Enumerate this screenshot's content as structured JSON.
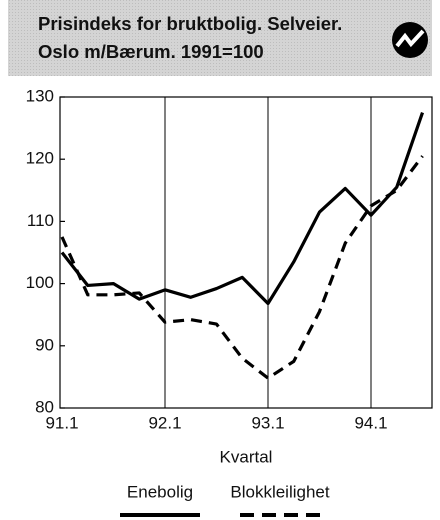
{
  "chart_data": {
    "type": "line",
    "title_lines": [
      "Prisindeks for bruktbolig. Selveier.",
      "Oslo m/Bærum. 1991=100"
    ],
    "x_label": "Kvartal",
    "categories": [
      "91.1",
      null,
      null,
      null,
      "92.1",
      null,
      null,
      null,
      "93.1",
      null,
      null,
      null,
      "94.1",
      null,
      null
    ],
    "series": [
      {
        "name": "Enebolig",
        "color": "#000000",
        "dashed": false,
        "values": [
          105,
          99.7,
          100,
          97.5,
          99,
          97.8,
          99.2,
          101,
          96.8,
          103.5,
          111.5,
          115.3,
          111,
          115.5,
          127.5
        ]
      },
      {
        "name": "Blokkleilighet",
        "color": "#000000",
        "dashed": true,
        "values": [
          107.5,
          98.2,
          98.2,
          98.5,
          93.8,
          94.2,
          93.5,
          88,
          84.8,
          87.5,
          95.5,
          106.5,
          112.5,
          115,
          120.5
        ]
      }
    ],
    "ylim": [
      80,
      130
    ],
    "yticks": [
      80,
      90,
      100,
      110,
      120,
      130
    ],
    "xgrid": true,
    "legend": "bottom"
  }
}
